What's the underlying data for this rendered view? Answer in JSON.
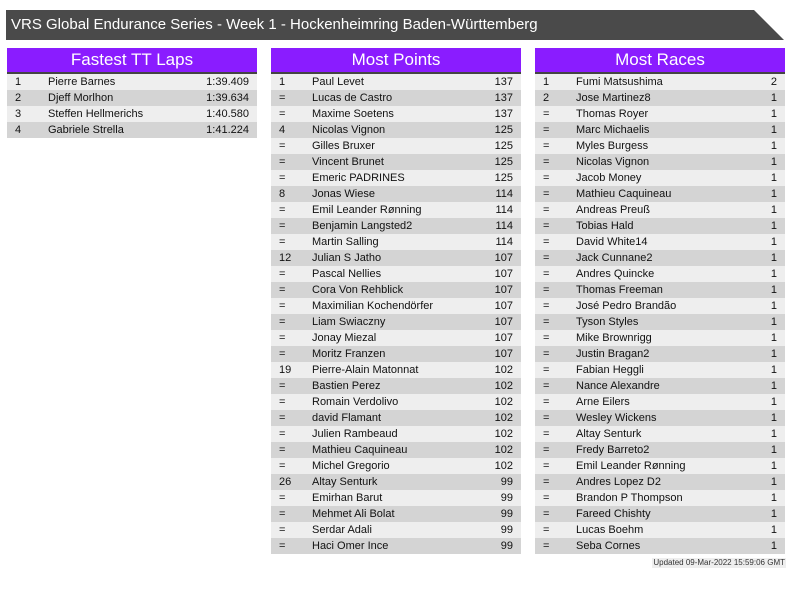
{
  "title": "VRS Global Endurance Series - Week 1 - Hockenheimring Baden-Württemberg",
  "updated": "Updated 09-Mar-2022 15:59:06 GMT",
  "colors": {
    "header": "#8a1cff",
    "title_bar": "#4a4a4a"
  },
  "panels": [
    {
      "title": "Fastest TT Laps",
      "rows": [
        [
          "1",
          "Pierre Barnes",
          "1:39.409"
        ],
        [
          "2",
          "Djeff Morlhon",
          "1:39.634"
        ],
        [
          "3",
          "Steffen Hellmerichs",
          "1:40.580"
        ],
        [
          "4",
          "Gabriele Strella",
          "1:41.224"
        ]
      ]
    },
    {
      "title": "Most Points",
      "rows": [
        [
          "1",
          "Paul Levet",
          "137"
        ],
        [
          "=",
          "Lucas de Castro",
          "137"
        ],
        [
          "=",
          "Maxime Soetens",
          "137"
        ],
        [
          "4",
          "Nicolas Vignon",
          "125"
        ],
        [
          "=",
          "Gilles Bruxer",
          "125"
        ],
        [
          "=",
          "Vincent Brunet",
          "125"
        ],
        [
          "=",
          "Emeric PADRINES",
          "125"
        ],
        [
          "8",
          "Jonas Wiese",
          "114"
        ],
        [
          "=",
          "Emil Leander Rønning",
          "114"
        ],
        [
          "=",
          "Benjamin Langsted2",
          "114"
        ],
        [
          "=",
          "Martin Salling",
          "114"
        ],
        [
          "12",
          "Julian S Jatho",
          "107"
        ],
        [
          "=",
          "Pascal Nellies",
          "107"
        ],
        [
          "=",
          "Cora Von Rehblick",
          "107"
        ],
        [
          "=",
          "Maximilian Kochendörfer",
          "107"
        ],
        [
          "=",
          "Liam Swiaczny",
          "107"
        ],
        [
          "=",
          "Jonay Miezal",
          "107"
        ],
        [
          "=",
          "Moritz Franzen",
          "107"
        ],
        [
          "19",
          "Pierre-Alain Matonnat",
          "102"
        ],
        [
          "=",
          "Bastien Perez",
          "102"
        ],
        [
          "=",
          "Romain Verdolivo",
          "102"
        ],
        [
          "=",
          "david Flamant",
          "102"
        ],
        [
          "=",
          "Julien Rambeaud",
          "102"
        ],
        [
          "=",
          "Mathieu Caquineau",
          "102"
        ],
        [
          "=",
          "Michel Gregorio",
          "102"
        ],
        [
          "26",
          "Altay Senturk",
          "99"
        ],
        [
          "=",
          "Emirhan Barut",
          "99"
        ],
        [
          "=",
          "Mehmet Ali Bolat",
          "99"
        ],
        [
          "=",
          "Serdar Adali",
          "99"
        ],
        [
          "=",
          "Haci Omer Ince",
          "99"
        ]
      ]
    },
    {
      "title": "Most Races",
      "rows": [
        [
          "1",
          "Fumi Matsushima",
          "2"
        ],
        [
          "2",
          "Jose Martinez8",
          "1"
        ],
        [
          "=",
          "Thomas Royer",
          "1"
        ],
        [
          "=",
          "Marc Michaelis",
          "1"
        ],
        [
          "=",
          "Myles Burgess",
          "1"
        ],
        [
          "=",
          "Nicolas Vignon",
          "1"
        ],
        [
          "=",
          "Jacob Money",
          "1"
        ],
        [
          "=",
          "Mathieu Caquineau",
          "1"
        ],
        [
          "=",
          "Andreas Preuß",
          "1"
        ],
        [
          "=",
          "Tobias Hald",
          "1"
        ],
        [
          "=",
          "David White14",
          "1"
        ],
        [
          "=",
          "Jack Cunnane2",
          "1"
        ],
        [
          "=",
          "Andres Quincke",
          "1"
        ],
        [
          "=",
          "Thomas Freeman",
          "1"
        ],
        [
          "=",
          "José Pedro Brandão",
          "1"
        ],
        [
          "=",
          "Tyson Styles",
          "1"
        ],
        [
          "=",
          "Mike Brownrigg",
          "1"
        ],
        [
          "=",
          "Justin Bragan2",
          "1"
        ],
        [
          "=",
          "Fabian Heggli",
          "1"
        ],
        [
          "=",
          "Nance Alexandre",
          "1"
        ],
        [
          "=",
          "Arne Eilers",
          "1"
        ],
        [
          "=",
          "Wesley Wickens",
          "1"
        ],
        [
          "=",
          "Altay Senturk",
          "1"
        ],
        [
          "=",
          "Fredy Barreto2",
          "1"
        ],
        [
          "=",
          "Emil Leander Rønning",
          "1"
        ],
        [
          "=",
          "Andres Lopez D2",
          "1"
        ],
        [
          "=",
          "Brandon P Thompson",
          "1"
        ],
        [
          "=",
          "Fareed Chishty",
          "1"
        ],
        [
          "=",
          "Lucas Boehm",
          "1"
        ],
        [
          "=",
          "Seba Cornes",
          "1"
        ]
      ]
    }
  ]
}
